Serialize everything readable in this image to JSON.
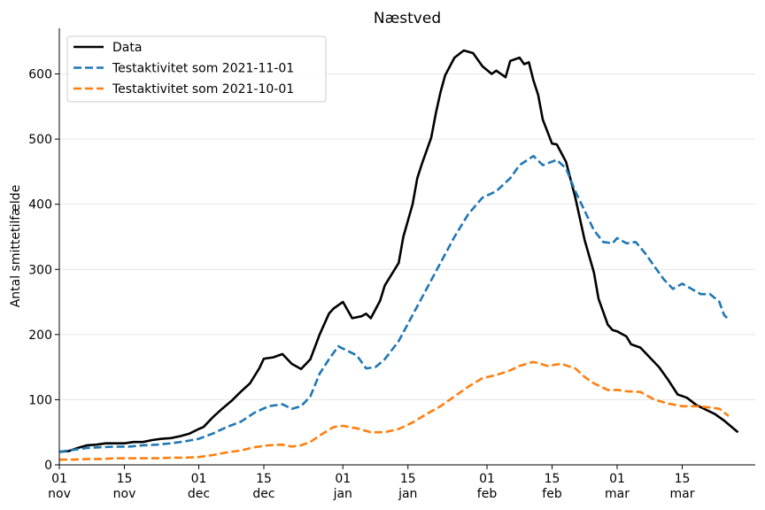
{
  "chart_data": {
    "type": "line",
    "title": "Næstved",
    "xlabel": "",
    "ylabel": "Antal smittetilfælde",
    "ylim": [
      0,
      670
    ],
    "yticks": [
      0,
      100,
      200,
      300,
      400,
      500,
      600
    ],
    "grid": "horizontal",
    "legend": "top-left",
    "x_start": "2021-11-01",
    "xticks": [
      {
        "date": "2021-11-01",
        "label": "01\nnov"
      },
      {
        "date": "2021-11-15",
        "label": "15\nnov"
      },
      {
        "date": "2021-12-01",
        "label": "01\ndec"
      },
      {
        "date": "2021-12-15",
        "label": "15\ndec"
      },
      {
        "date": "2022-01-01",
        "label": "01\njan"
      },
      {
        "date": "2022-01-15",
        "label": "15\njan"
      },
      {
        "date": "2022-02-01",
        "label": "01\nfeb"
      },
      {
        "date": "2022-02-15",
        "label": "15\nfeb"
      },
      {
        "date": "2022-03-01",
        "label": "01\nmar"
      },
      {
        "date": "2022-03-15",
        "label": "15\nmar"
      }
    ],
    "series": [
      {
        "name": "Data",
        "color": "#000000",
        "style": "solid",
        "points": [
          [
            "2021-11-01",
            20
          ],
          [
            "2021-11-03",
            21
          ],
          [
            "2021-11-05",
            26
          ],
          [
            "2021-11-07",
            30
          ],
          [
            "2021-11-09",
            31
          ],
          [
            "2021-11-11",
            33
          ],
          [
            "2021-11-13",
            33
          ],
          [
            "2021-11-15",
            33
          ],
          [
            "2021-11-17",
            35
          ],
          [
            "2021-11-19",
            35
          ],
          [
            "2021-11-21",
            38
          ],
          [
            "2021-11-23",
            40
          ],
          [
            "2021-11-25",
            41
          ],
          [
            "2021-11-27",
            44
          ],
          [
            "2021-11-29",
            48
          ],
          [
            "2021-12-01",
            55
          ],
          [
            "2021-12-02",
            58
          ],
          [
            "2021-12-04",
            73
          ],
          [
            "2021-12-06",
            86
          ],
          [
            "2021-12-08",
            98
          ],
          [
            "2021-12-10",
            112
          ],
          [
            "2021-12-12",
            125
          ],
          [
            "2021-12-14",
            148
          ],
          [
            "2021-12-15",
            163
          ],
          [
            "2021-12-17",
            165
          ],
          [
            "2021-12-19",
            170
          ],
          [
            "2021-12-21",
            155
          ],
          [
            "2021-12-23",
            147
          ],
          [
            "2021-12-25",
            162
          ],
          [
            "2021-12-27",
            200
          ],
          [
            "2021-12-29",
            232
          ],
          [
            "2021-12-30",
            240
          ],
          [
            "2022-01-01",
            250
          ],
          [
            "2022-01-03",
            225
          ],
          [
            "2022-01-05",
            228
          ],
          [
            "2022-01-06",
            232
          ],
          [
            "2022-01-07",
            225
          ],
          [
            "2022-01-09",
            252
          ],
          [
            "2022-01-10",
            275
          ],
          [
            "2022-01-13",
            310
          ],
          [
            "2022-01-14",
            350
          ],
          [
            "2022-01-16",
            400
          ],
          [
            "2022-01-17",
            440
          ],
          [
            "2022-01-18",
            462
          ],
          [
            "2022-01-20",
            502
          ],
          [
            "2022-01-21",
            540
          ],
          [
            "2022-01-22",
            572
          ],
          [
            "2022-01-23",
            598
          ],
          [
            "2022-01-25",
            625
          ],
          [
            "2022-01-27",
            636
          ],
          [
            "2022-01-29",
            632
          ],
          [
            "2022-01-31",
            612
          ],
          [
            "2022-02-02",
            600
          ],
          [
            "2022-02-03",
            605
          ],
          [
            "2022-02-05",
            595
          ],
          [
            "2022-02-06",
            620
          ],
          [
            "2022-02-08",
            625
          ],
          [
            "2022-02-09",
            615
          ],
          [
            "2022-02-10",
            618
          ],
          [
            "2022-02-11",
            590
          ],
          [
            "2022-02-12",
            568
          ],
          [
            "2022-02-13",
            530
          ],
          [
            "2022-02-15",
            493
          ],
          [
            "2022-02-16",
            492
          ],
          [
            "2022-02-18",
            465
          ],
          [
            "2022-02-20",
            410
          ],
          [
            "2022-02-22",
            345
          ],
          [
            "2022-02-24",
            295
          ],
          [
            "2022-02-25",
            255
          ],
          [
            "2022-02-27",
            215
          ],
          [
            "2022-02-28",
            207
          ],
          [
            "2022-03-01",
            205
          ],
          [
            "2022-03-03",
            197
          ],
          [
            "2022-03-04",
            185
          ],
          [
            "2022-03-06",
            180
          ],
          [
            "2022-03-08",
            165
          ],
          [
            "2022-03-10",
            150
          ],
          [
            "2022-03-12",
            130
          ],
          [
            "2022-03-14",
            108
          ],
          [
            "2022-03-16",
            103
          ],
          [
            "2022-03-18",
            92
          ],
          [
            "2022-03-20",
            85
          ],
          [
            "2022-03-22",
            78
          ],
          [
            "2022-03-24",
            68
          ],
          [
            "2022-03-25",
            62
          ],
          [
            "2022-03-27",
            50
          ]
        ]
      },
      {
        "name": "Testaktivitet som 2021-11-01",
        "color": "#1f77b4",
        "style": "dashed",
        "points": [
          [
            "2021-11-01",
            20
          ],
          [
            "2021-11-04",
            23
          ],
          [
            "2021-11-07",
            26
          ],
          [
            "2021-11-10",
            27
          ],
          [
            "2021-11-13",
            28
          ],
          [
            "2021-11-16",
            28
          ],
          [
            "2021-11-19",
            30
          ],
          [
            "2021-11-22",
            31
          ],
          [
            "2021-11-25",
            33
          ],
          [
            "2021-11-28",
            36
          ],
          [
            "2021-12-01",
            40
          ],
          [
            "2021-12-04",
            48
          ],
          [
            "2021-12-07",
            58
          ],
          [
            "2021-12-10",
            66
          ],
          [
            "2021-12-13",
            80
          ],
          [
            "2021-12-16",
            90
          ],
          [
            "2021-12-19",
            93
          ],
          [
            "2021-12-21",
            86
          ],
          [
            "2021-12-23",
            90
          ],
          [
            "2021-12-25",
            105
          ],
          [
            "2021-12-27",
            140
          ],
          [
            "2021-12-29",
            162
          ],
          [
            "2021-12-31",
            182
          ],
          [
            "2022-01-02",
            175
          ],
          [
            "2022-01-04",
            168
          ],
          [
            "2022-01-06",
            148
          ],
          [
            "2022-01-08",
            150
          ],
          [
            "2022-01-10",
            162
          ],
          [
            "2022-01-13",
            190
          ],
          [
            "2022-01-16",
            230
          ],
          [
            "2022-01-19",
            270
          ],
          [
            "2022-01-22",
            310
          ],
          [
            "2022-01-25",
            350
          ],
          [
            "2022-01-28",
            385
          ],
          [
            "2022-01-31",
            410
          ],
          [
            "2022-02-03",
            420
          ],
          [
            "2022-02-06",
            440
          ],
          [
            "2022-02-08",
            460
          ],
          [
            "2022-02-11",
            474
          ],
          [
            "2022-02-13",
            460
          ],
          [
            "2022-02-16",
            468
          ],
          [
            "2022-02-18",
            455
          ],
          [
            "2022-02-20",
            420
          ],
          [
            "2022-02-22",
            390
          ],
          [
            "2022-02-24",
            360
          ],
          [
            "2022-02-26",
            342
          ],
          [
            "2022-02-28",
            340
          ],
          [
            "2022-03-01",
            348
          ],
          [
            "2022-03-03",
            340
          ],
          [
            "2022-03-05",
            342
          ],
          [
            "2022-03-07",
            325
          ],
          [
            "2022-03-09",
            305
          ],
          [
            "2022-03-11",
            285
          ],
          [
            "2022-03-13",
            270
          ],
          [
            "2022-03-15",
            278
          ],
          [
            "2022-03-17",
            270
          ],
          [
            "2022-03-19",
            262
          ],
          [
            "2022-03-21",
            262
          ],
          [
            "2022-03-23",
            250
          ],
          [
            "2022-03-24",
            230
          ],
          [
            "2022-03-25",
            223
          ]
        ]
      },
      {
        "name": "Testaktivitet som 2021-10-01",
        "color": "#ff7f0e",
        "style": "dashed",
        "points": [
          [
            "2021-11-01",
            8
          ],
          [
            "2021-11-04",
            8
          ],
          [
            "2021-11-07",
            9
          ],
          [
            "2021-11-10",
            9
          ],
          [
            "2021-11-13",
            10
          ],
          [
            "2021-11-16",
            10
          ],
          [
            "2021-11-19",
            10
          ],
          [
            "2021-11-22",
            10
          ],
          [
            "2021-11-25",
            11
          ],
          [
            "2021-11-28",
            11
          ],
          [
            "2021-12-01",
            12
          ],
          [
            "2021-12-04",
            15
          ],
          [
            "2021-12-07",
            19
          ],
          [
            "2021-12-10",
            22
          ],
          [
            "2021-12-13",
            27
          ],
          [
            "2021-12-16",
            30
          ],
          [
            "2021-12-19",
            31
          ],
          [
            "2021-12-21",
            28
          ],
          [
            "2021-12-23",
            30
          ],
          [
            "2021-12-25",
            35
          ],
          [
            "2021-12-27",
            45
          ],
          [
            "2021-12-30",
            58
          ],
          [
            "2022-01-01",
            60
          ],
          [
            "2022-01-04",
            56
          ],
          [
            "2022-01-07",
            50
          ],
          [
            "2022-01-10",
            50
          ],
          [
            "2022-01-13",
            55
          ],
          [
            "2022-01-16",
            65
          ],
          [
            "2022-01-19",
            78
          ],
          [
            "2022-01-22",
            90
          ],
          [
            "2022-01-25",
            105
          ],
          [
            "2022-01-28",
            120
          ],
          [
            "2022-01-31",
            133
          ],
          [
            "2022-02-03",
            138
          ],
          [
            "2022-02-06",
            145
          ],
          [
            "2022-02-08",
            152
          ],
          [
            "2022-02-11",
            158
          ],
          [
            "2022-02-14",
            152
          ],
          [
            "2022-02-17",
            155
          ],
          [
            "2022-02-20",
            148
          ],
          [
            "2022-02-22",
            135
          ],
          [
            "2022-02-24",
            125
          ],
          [
            "2022-02-27",
            115
          ],
          [
            "2022-03-01",
            115
          ],
          [
            "2022-03-03",
            113
          ],
          [
            "2022-03-06",
            112
          ],
          [
            "2022-03-09",
            100
          ],
          [
            "2022-03-12",
            94
          ],
          [
            "2022-03-15",
            90
          ],
          [
            "2022-03-18",
            90
          ],
          [
            "2022-03-21",
            88
          ],
          [
            "2022-03-23",
            86
          ],
          [
            "2022-03-25",
            75
          ]
        ]
      }
    ]
  }
}
